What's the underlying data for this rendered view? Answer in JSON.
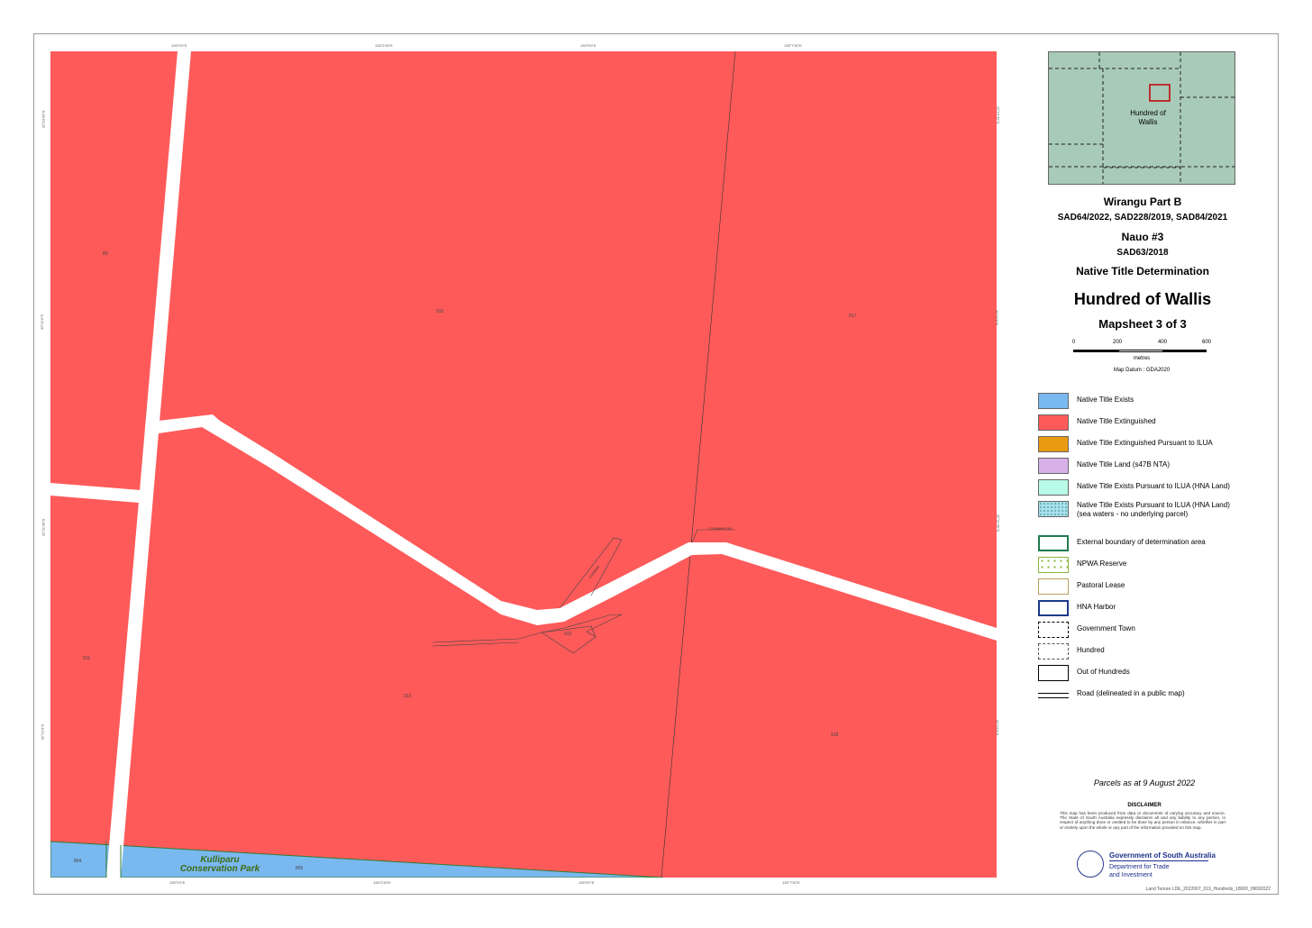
{
  "map": {
    "top_ticks": [
      "135°0'0\"E",
      "135°2'30\"E",
      "135°5'0\"E",
      "135°7'30\"E"
    ],
    "bottom_ticks": [
      "135°0'0\"E",
      "135°2'30\"E",
      "135°5'0\"E",
      "135°7'30\"E"
    ],
    "left_ticks": [
      "32°10'30\"S",
      "32°11'0\"S",
      "32°11'30\"S",
      "32°12'0\"S"
    ],
    "right_ticks": [
      "32°10'30\"S",
      "32°11'0\"S",
      "32°11'30\"S",
      "32°12'0\"S"
    ],
    "parcels": [
      "89",
      "910",
      "917",
      "911",
      "913",
      "918",
      "912"
    ],
    "park_label": "Kulliparu\nConservation Park",
    "park_parcels": [
      "804",
      "805"
    ],
    "road_labels": [
      "CUMMINS AV",
      "CUNNAK"
    ],
    "colors": {
      "extinguished": "#ff5a5a",
      "exists": "#7ab8f0",
      "road": "#ffffff"
    }
  },
  "locator": {
    "label": "Hundred of\nWallis"
  },
  "title": {
    "line1": "Wirangu Part B",
    "line2": "SAD64/2022, SAD228/2019, SAD84/2021",
    "line3": "Nauo #3",
    "line4": "SAD63/2018",
    "line5": "Native Title Determination",
    "main": "Hundred of Wallis",
    "sheet": "Mapsheet 3 of 3"
  },
  "scale": {
    "ticks": [
      "0",
      "200",
      "400",
      "600"
    ],
    "unit": "metres",
    "datum": "Map Datum : GDA2020"
  },
  "legend": [
    {
      "label": "Native Title Exists",
      "color": "#7ab8f0"
    },
    {
      "label": "Native Title Extinguished",
      "color": "#ff5a5a"
    },
    {
      "label": "Native Title Extinguished Pursuant to ILUA",
      "color": "#e89a10"
    },
    {
      "label": "Native Title Land (s47B NTA)",
      "color": "#d8b0e8"
    },
    {
      "label": "Native Title Exists Pursuant to ILUA (HNA Land)",
      "color": "#b8fbe6"
    },
    {
      "label": "Native Title Exists Pursuant to ILUA (HNA Land)\n(sea waters - no underlying parcel)",
      "color": "#a8e0ec"
    },
    {
      "label": "External boundary of determination area",
      "color": "#1f7a4e"
    },
    {
      "label": "NPWA Reserve",
      "color": "#8cb43c"
    },
    {
      "label": "Pastoral Lease",
      "color": "#b8a060"
    },
    {
      "label": "HNA Harbor",
      "color": "#1a3a8a"
    },
    {
      "label": "Government Town",
      "color": "#000000"
    },
    {
      "label": "Hundred",
      "color": "#555555"
    },
    {
      "label": "Out of Hundreds",
      "color": "#000000"
    },
    {
      "label": "Road (delineated in a public map)",
      "color": "#000000"
    }
  ],
  "footer": {
    "parcels_as": "Parcels as at 9 August 2022",
    "disclaimer_title": "DISCLAIMER",
    "disclaimer": "This map has been produced from data or documents of varying accuracy and source. The State of South Australia expressly disclaims all and any liability to any person, in respect of anything done or omitted to be done by any person in reliance, whether in part or entirely upon the whole or any part of the information provided on this map.",
    "gov": "Government of South Australia",
    "dept": "Department for Trade\nand Investment",
    "ref": "Land Tenure LDE_2022007_019_Hundreds_18000_09092022"
  }
}
